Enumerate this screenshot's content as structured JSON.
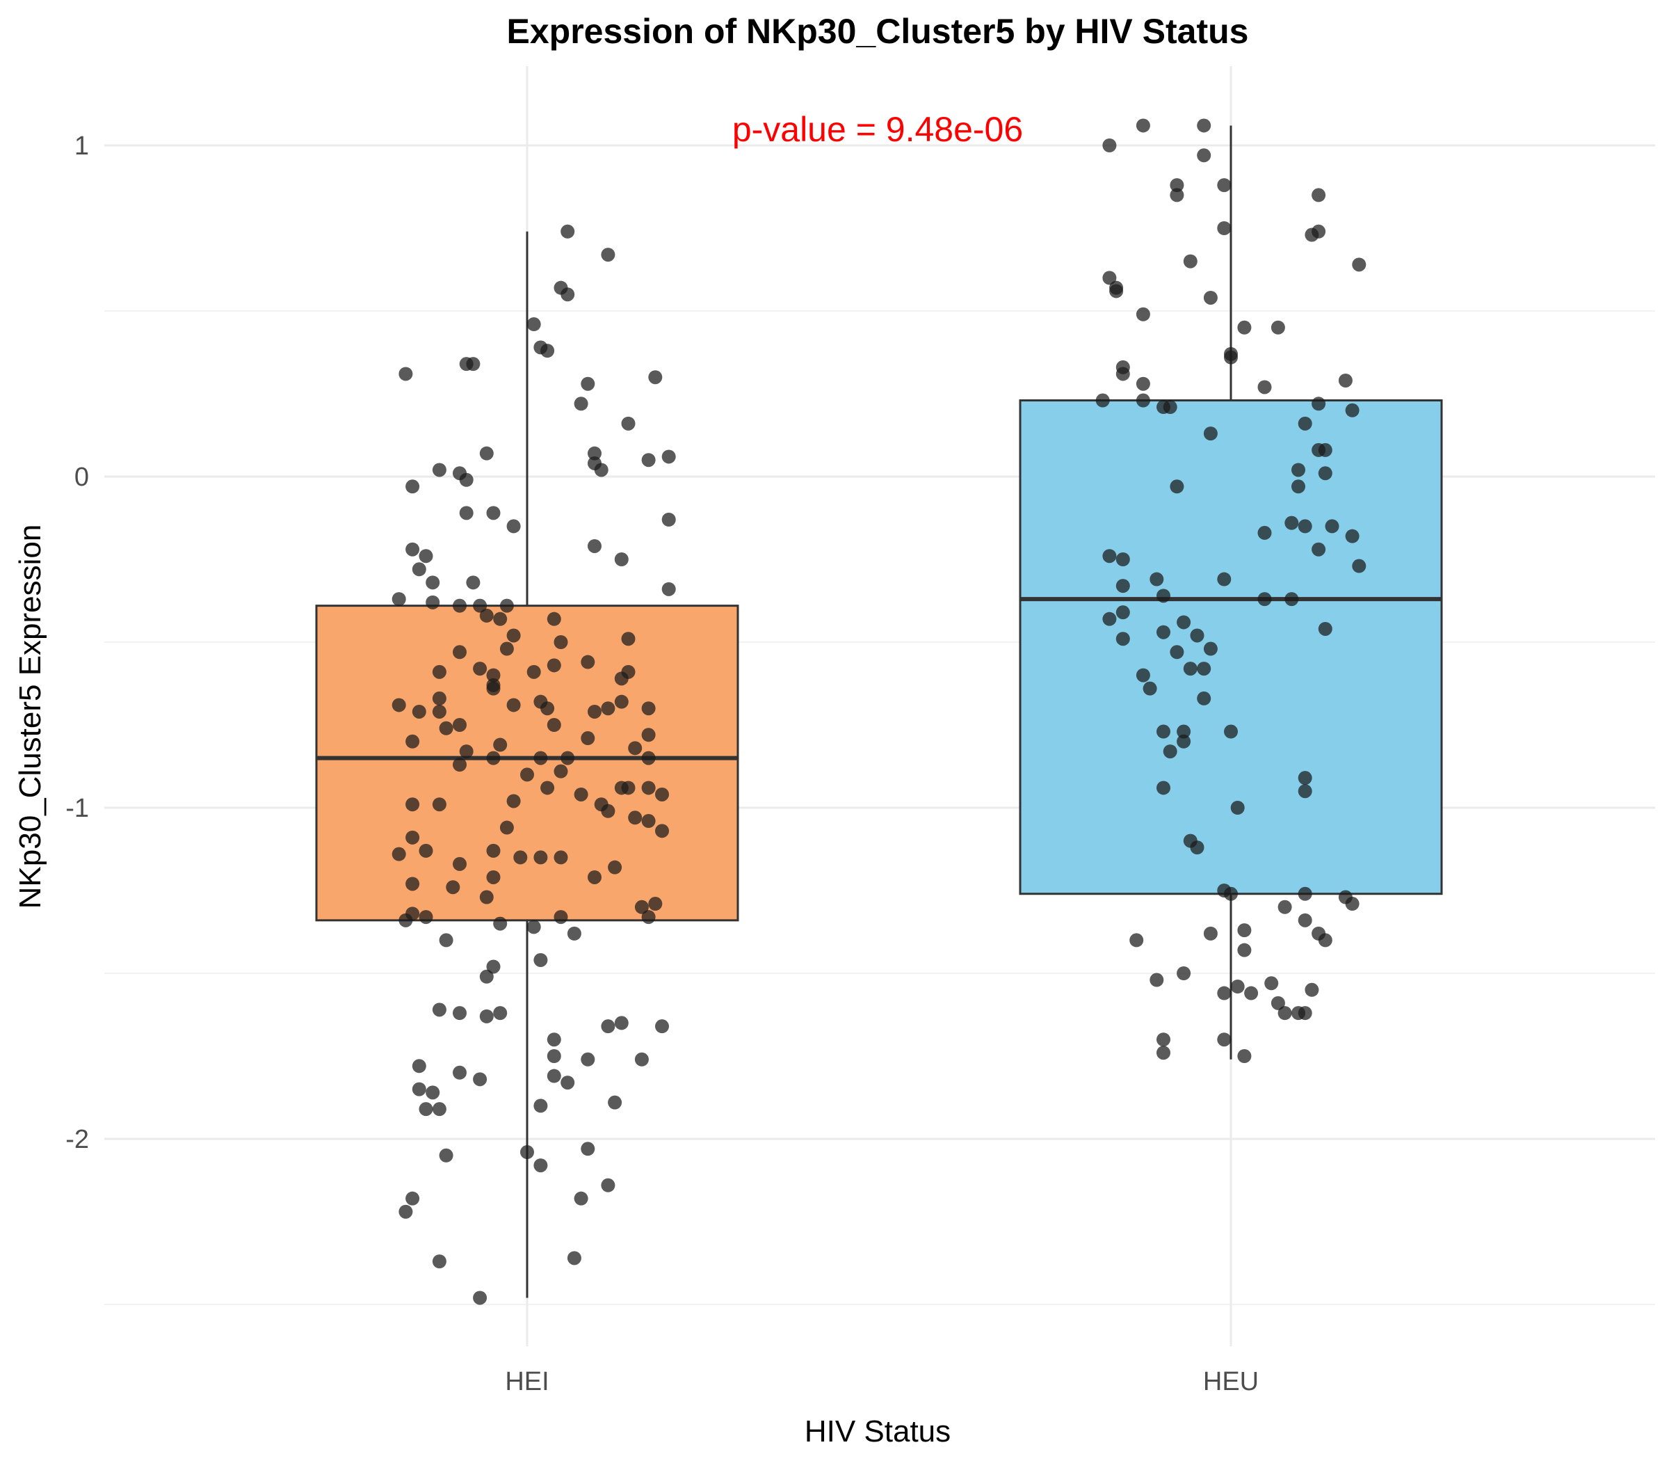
{
  "chart_data": {
    "type": "box",
    "title": "Expression of NKp30_Cluster5 by HIV Status",
    "xlabel": "HIV Status",
    "ylabel": "NKp30_Cluster5 Expression",
    "categories": [
      "HEI",
      "HEU"
    ],
    "ylim": [
      -2.6,
      1.25
    ],
    "yticks": [
      -2,
      -1,
      0,
      1
    ],
    "ytick_labels": [
      "-2",
      "-1",
      "0",
      "1"
    ],
    "grid": true,
    "legend": "none",
    "annotation": {
      "text": "p-value = 9.48e-06",
      "color": "#ff0000"
    },
    "point_color": "#1a1a1a",
    "series": [
      {
        "category": "HEI",
        "fill": "#f9a66c",
        "box": {
          "whisker_low": -2.48,
          "q1": -1.34,
          "median": -0.85,
          "q3": -0.39,
          "whisker_high": 0.74
        },
        "points": [
          [
            -0.18,
            0.31
          ],
          [
            -0.09,
            0.34
          ],
          [
            -0.08,
            0.34
          ],
          [
            0.01,
            0.46
          ],
          [
            0.02,
            0.39
          ],
          [
            0.03,
            0.38
          ],
          [
            0.05,
            0.57
          ],
          [
            0.06,
            0.55
          ],
          [
            0.06,
            0.74
          ],
          [
            0.09,
            0.28
          ],
          [
            0.08,
            0.22
          ],
          [
            0.12,
            0.67
          ],
          [
            0.15,
            0.16
          ],
          [
            0.19,
            0.3
          ],
          [
            0.18,
            0.05
          ],
          [
            0.21,
            0.06
          ],
          [
            0.1,
            0.07
          ],
          [
            0.1,
            0.04
          ],
          [
            0.11,
            0.02
          ],
          [
            -0.06,
            0.07
          ],
          [
            -0.13,
            0.02
          ],
          [
            -0.1,
            0.01
          ],
          [
            -0.09,
            -0.01
          ],
          [
            -0.17,
            -0.03
          ],
          [
            -0.09,
            -0.11
          ],
          [
            -0.05,
            -0.11
          ],
          [
            -0.02,
            -0.15
          ],
          [
            0.21,
            -0.13
          ],
          [
            -0.17,
            -0.22
          ],
          [
            -0.15,
            -0.24
          ],
          [
            -0.16,
            -0.28
          ],
          [
            -0.14,
            -0.32
          ],
          [
            -0.08,
            -0.32
          ],
          [
            0.1,
            -0.21
          ],
          [
            0.14,
            -0.25
          ],
          [
            0.21,
            -0.34
          ],
          [
            -0.19,
            -0.37
          ],
          [
            -0.14,
            -0.38
          ],
          [
            -0.1,
            -0.39
          ],
          [
            -0.07,
            -0.39
          ],
          [
            -0.03,
            -0.39
          ],
          [
            -0.06,
            -0.42
          ],
          [
            -0.04,
            -0.43
          ],
          [
            0.04,
            -0.43
          ],
          [
            -0.02,
            -0.48
          ],
          [
            0.05,
            -0.5
          ],
          [
            0.15,
            -0.49
          ],
          [
            -0.03,
            -0.52
          ],
          [
            -0.1,
            -0.53
          ],
          [
            -0.07,
            -0.58
          ],
          [
            -0.05,
            -0.6
          ],
          [
            -0.13,
            -0.59
          ],
          [
            0.01,
            -0.59
          ],
          [
            0.04,
            -0.57
          ],
          [
            0.09,
            -0.56
          ],
          [
            0.14,
            -0.61
          ],
          [
            0.15,
            -0.59
          ],
          [
            -0.05,
            -0.63
          ],
          [
            -0.05,
            -0.64
          ],
          [
            -0.13,
            -0.67
          ],
          [
            -0.19,
            -0.69
          ],
          [
            -0.16,
            -0.71
          ],
          [
            -0.13,
            -0.71
          ],
          [
            -0.02,
            -0.69
          ],
          [
            0.02,
            -0.68
          ],
          [
            0.03,
            -0.7
          ],
          [
            0.1,
            -0.71
          ],
          [
            0.12,
            -0.7
          ],
          [
            0.14,
            -0.68
          ],
          [
            0.18,
            -0.7
          ],
          [
            -0.12,
            -0.76
          ],
          [
            -0.1,
            -0.75
          ],
          [
            0.04,
            -0.75
          ],
          [
            0.09,
            -0.79
          ],
          [
            0.18,
            -0.78
          ],
          [
            -0.17,
            -0.8
          ],
          [
            -0.09,
            -0.83
          ],
          [
            -0.04,
            -0.81
          ],
          [
            0.02,
            -0.85
          ],
          [
            0.06,
            -0.85
          ],
          [
            0.16,
            -0.82
          ],
          [
            0.18,
            -0.85
          ],
          [
            -0.05,
            -0.85
          ],
          [
            -0.1,
            -0.87
          ],
          [
            0.0,
            -0.9
          ],
          [
            0.05,
            -0.89
          ],
          [
            0.03,
            -0.94
          ],
          [
            -0.17,
            -0.99
          ],
          [
            -0.13,
            -0.99
          ],
          [
            -0.02,
            -0.98
          ],
          [
            0.08,
            -0.96
          ],
          [
            0.11,
            -0.99
          ],
          [
            0.14,
            -0.94
          ],
          [
            0.15,
            -0.94
          ],
          [
            0.18,
            -0.94
          ],
          [
            0.2,
            -0.96
          ],
          [
            0.12,
            -1.01
          ],
          [
            -0.17,
            -1.09
          ],
          [
            -0.03,
            -1.06
          ],
          [
            0.16,
            -1.03
          ],
          [
            0.18,
            -1.04
          ],
          [
            0.2,
            -1.07
          ],
          [
            -0.19,
            -1.14
          ],
          [
            -0.15,
            -1.13
          ],
          [
            -0.1,
            -1.17
          ],
          [
            -0.05,
            -1.13
          ],
          [
            -0.01,
            -1.15
          ],
          [
            0.02,
            -1.15
          ],
          [
            0.05,
            -1.15
          ],
          [
            0.13,
            -1.18
          ],
          [
            -0.17,
            -1.23
          ],
          [
            -0.11,
            -1.24
          ],
          [
            -0.05,
            -1.21
          ],
          [
            0.1,
            -1.21
          ],
          [
            -0.06,
            -1.27
          ],
          [
            -0.18,
            -1.34
          ],
          [
            -0.17,
            -1.32
          ],
          [
            -0.15,
            -1.33
          ],
          [
            0.17,
            -1.3
          ],
          [
            0.19,
            -1.29
          ],
          [
            0.18,
            -1.33
          ],
          [
            -0.04,
            -1.35
          ],
          [
            0.01,
            -1.36
          ],
          [
            0.05,
            -1.33
          ],
          [
            0.07,
            -1.38
          ],
          [
            -0.12,
            -1.4
          ],
          [
            -0.05,
            -1.48
          ],
          [
            -0.06,
            -1.51
          ],
          [
            0.02,
            -1.46
          ],
          [
            -0.13,
            -1.61
          ],
          [
            -0.1,
            -1.62
          ],
          [
            -0.06,
            -1.63
          ],
          [
            -0.04,
            -1.62
          ],
          [
            0.12,
            -1.66
          ],
          [
            0.14,
            -1.65
          ],
          [
            0.2,
            -1.66
          ],
          [
            0.04,
            -1.7
          ],
          [
            0.04,
            -1.75
          ],
          [
            0.09,
            -1.76
          ],
          [
            0.17,
            -1.76
          ],
          [
            -0.16,
            -1.78
          ],
          [
            -0.1,
            -1.8
          ],
          [
            -0.07,
            -1.82
          ],
          [
            0.04,
            -1.81
          ],
          [
            0.06,
            -1.83
          ],
          [
            -0.16,
            -1.85
          ],
          [
            -0.14,
            -1.86
          ],
          [
            -0.15,
            -1.91
          ],
          [
            -0.13,
            -1.91
          ],
          [
            0.02,
            -1.9
          ],
          [
            0.13,
            -1.89
          ],
          [
            -0.12,
            -2.05
          ],
          [
            0.0,
            -2.04
          ],
          [
            0.02,
            -2.08
          ],
          [
            0.09,
            -2.03
          ],
          [
            0.12,
            -2.14
          ],
          [
            -0.17,
            -2.18
          ],
          [
            -0.18,
            -2.22
          ],
          [
            0.08,
            -2.18
          ],
          [
            -0.13,
            -2.37
          ],
          [
            0.07,
            -2.36
          ],
          [
            -0.07,
            -2.48
          ]
        ]
      },
      {
        "category": "HEU",
        "fill": "#87ceea",
        "box": {
          "whisker_low": -1.76,
          "q1": -1.26,
          "median": -0.37,
          "q3": 0.23,
          "whisker_high": 1.06
        },
        "points": [
          [
            -0.18,
            1.0
          ],
          [
            -0.13,
            1.06
          ],
          [
            -0.08,
            0.88
          ],
          [
            -0.08,
            0.85
          ],
          [
            -0.04,
            0.97
          ],
          [
            -0.04,
            1.06
          ],
          [
            -0.01,
            0.88
          ],
          [
            -0.01,
            0.75
          ],
          [
            0.13,
            0.85
          ],
          [
            0.13,
            0.74
          ],
          [
            0.12,
            0.73
          ],
          [
            0.19,
            0.64
          ],
          [
            -0.18,
            0.6
          ],
          [
            -0.17,
            0.57
          ],
          [
            -0.17,
            0.56
          ],
          [
            -0.06,
            0.65
          ],
          [
            -0.03,
            0.54
          ],
          [
            -0.13,
            0.49
          ],
          [
            0.02,
            0.45
          ],
          [
            0.07,
            0.45
          ],
          [
            0.0,
            0.37
          ],
          [
            0.0,
            0.36
          ],
          [
            -0.16,
            0.33
          ],
          [
            -0.16,
            0.31
          ],
          [
            -0.13,
            0.28
          ],
          [
            0.05,
            0.27
          ],
          [
            0.17,
            0.29
          ],
          [
            -0.19,
            0.23
          ],
          [
            -0.13,
            0.23
          ],
          [
            -0.1,
            0.21
          ],
          [
            -0.09,
            0.21
          ],
          [
            0.13,
            0.22
          ],
          [
            0.18,
            0.2
          ],
          [
            0.11,
            0.16
          ],
          [
            -0.03,
            0.13
          ],
          [
            0.13,
            0.08
          ],
          [
            0.14,
            0.08
          ],
          [
            0.1,
            0.02
          ],
          [
            0.14,
            0.01
          ],
          [
            0.1,
            -0.03
          ],
          [
            -0.08,
            -0.03
          ],
          [
            0.05,
            -0.17
          ],
          [
            0.09,
            -0.14
          ],
          [
            0.11,
            -0.15
          ],
          [
            0.15,
            -0.15
          ],
          [
            0.18,
            -0.18
          ],
          [
            0.13,
            -0.22
          ],
          [
            -0.18,
            -0.24
          ],
          [
            -0.16,
            -0.25
          ],
          [
            0.19,
            -0.27
          ],
          [
            -0.11,
            -0.31
          ],
          [
            -0.16,
            -0.33
          ],
          [
            -0.1,
            -0.36
          ],
          [
            -0.01,
            -0.31
          ],
          [
            0.05,
            -0.37
          ],
          [
            0.09,
            -0.37
          ],
          [
            -0.16,
            -0.41
          ],
          [
            -0.18,
            -0.43
          ],
          [
            -0.07,
            -0.44
          ],
          [
            -0.1,
            -0.47
          ],
          [
            0.14,
            -0.46
          ],
          [
            -0.16,
            -0.49
          ],
          [
            -0.05,
            -0.48
          ],
          [
            -0.03,
            -0.52
          ],
          [
            -0.08,
            -0.53
          ],
          [
            -0.06,
            -0.58
          ],
          [
            -0.04,
            -0.58
          ],
          [
            -0.13,
            -0.6
          ],
          [
            -0.12,
            -0.64
          ],
          [
            -0.04,
            -0.67
          ],
          [
            -0.1,
            -0.77
          ],
          [
            -0.07,
            -0.77
          ],
          [
            0.0,
            -0.77
          ],
          [
            -0.07,
            -0.8
          ],
          [
            -0.09,
            -0.83
          ],
          [
            -0.1,
            -0.94
          ],
          [
            0.11,
            -0.91
          ],
          [
            0.11,
            -0.95
          ],
          [
            0.01,
            -1.0
          ],
          [
            -0.06,
            -1.1
          ],
          [
            -0.05,
            -1.12
          ],
          [
            -0.01,
            -1.25
          ],
          [
            0.0,
            -1.26
          ],
          [
            0.11,
            -1.26
          ],
          [
            0.17,
            -1.27
          ],
          [
            0.18,
            -1.29
          ],
          [
            0.08,
            -1.3
          ],
          [
            0.11,
            -1.34
          ],
          [
            0.02,
            -1.37
          ],
          [
            -0.03,
            -1.38
          ],
          [
            0.13,
            -1.38
          ],
          [
            0.14,
            -1.4
          ],
          [
            -0.14,
            -1.4
          ],
          [
            0.02,
            -1.43
          ],
          [
            -0.11,
            -1.52
          ],
          [
            -0.07,
            -1.5
          ],
          [
            0.01,
            -1.54
          ],
          [
            0.03,
            -1.56
          ],
          [
            0.06,
            -1.53
          ],
          [
            0.12,
            -1.55
          ],
          [
            -0.01,
            -1.56
          ],
          [
            0.07,
            -1.59
          ],
          [
            0.08,
            -1.62
          ],
          [
            0.1,
            -1.62
          ],
          [
            0.11,
            -1.62
          ],
          [
            -0.1,
            -1.7
          ],
          [
            -0.01,
            -1.7
          ],
          [
            -0.1,
            -1.74
          ],
          [
            0.02,
            -1.75
          ]
        ]
      }
    ]
  }
}
